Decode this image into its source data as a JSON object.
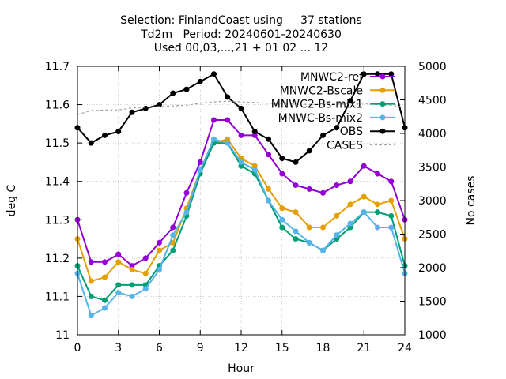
{
  "chart_data": {
    "type": "line",
    "title_lines": [
      "Selection: FinlandCoast using     37 stations",
      "Td2m   Period: 20240601-20240630",
      "Used 00,03,...,21 + 01 02 ... 12"
    ],
    "xlabel": "Hour",
    "ylabel": "deg C",
    "y2label": "No cases",
    "xlim": [
      0,
      24
    ],
    "ylim": [
      11.0,
      11.7
    ],
    "y2lim": [
      1000,
      5000
    ],
    "xticks": [
      "0",
      "3",
      "6",
      "9",
      "12",
      "15",
      "18",
      "21",
      "24"
    ],
    "yticks": [
      "11",
      "11.1",
      "11.2",
      "11.3",
      "11.4",
      "11.5",
      "11.6",
      "11.7"
    ],
    "y2ticks": [
      "1000",
      "1500",
      "2000",
      "2500",
      "3000",
      "3500",
      "4000",
      "4500",
      "5000"
    ],
    "legend_position": "top-right",
    "grid": true,
    "x": [
      0,
      1,
      2,
      3,
      4,
      5,
      6,
      7,
      8,
      9,
      10,
      11,
      12,
      13,
      14,
      15,
      16,
      17,
      18,
      19,
      20,
      21,
      22,
      23,
      24
    ],
    "series": [
      {
        "name": "MNWC2-ref",
        "color": "#9400d3",
        "axis": "y",
        "values": [
          11.3,
          11.19,
          11.19,
          11.21,
          11.18,
          11.2,
          11.24,
          11.28,
          11.37,
          11.45,
          11.56,
          11.56,
          11.52,
          11.52,
          11.47,
          11.42,
          11.39,
          11.38,
          11.37,
          11.39,
          11.4,
          11.44,
          11.42,
          11.4,
          11.3
        ]
      },
      {
        "name": "MNWC2-Bscale",
        "color": "#e69f00",
        "axis": "y",
        "values": [
          11.25,
          11.14,
          11.15,
          11.19,
          11.17,
          11.16,
          11.22,
          11.24,
          11.33,
          11.43,
          11.5,
          11.51,
          11.46,
          11.44,
          11.38,
          11.33,
          11.32,
          11.28,
          11.28,
          11.31,
          11.34,
          11.36,
          11.34,
          11.35,
          11.25
        ]
      },
      {
        "name": "MNWC2-Bs-mix1",
        "color": "#009e73",
        "axis": "y",
        "values": [
          11.18,
          11.1,
          11.09,
          11.13,
          11.13,
          11.13,
          11.18,
          11.22,
          11.31,
          11.42,
          11.5,
          11.5,
          11.44,
          11.42,
          11.35,
          11.28,
          11.25,
          11.24,
          11.22,
          11.25,
          11.28,
          11.32,
          11.32,
          11.31,
          11.18
        ]
      },
      {
        "name": "MNWC-Bs-mix2",
        "color": "#56b4e9",
        "axis": "y",
        "values": [
          11.16,
          11.05,
          11.07,
          11.11,
          11.1,
          11.12,
          11.17,
          11.26,
          11.32,
          11.43,
          11.51,
          11.5,
          11.45,
          11.43,
          11.35,
          11.3,
          11.27,
          11.24,
          11.22,
          11.26,
          11.29,
          11.32,
          11.28,
          11.28,
          11.16
        ]
      },
      {
        "name": "OBS",
        "color": "#000000",
        "axis": "y",
        "values": [
          11.54,
          11.5,
          11.52,
          11.53,
          11.58,
          11.59,
          11.6,
          11.63,
          11.64,
          11.66,
          11.68,
          11.62,
          11.59,
          11.53,
          11.51,
          11.46,
          11.45,
          11.48,
          11.52,
          11.54,
          11.61,
          11.68,
          11.68,
          11.68,
          11.54
        ]
      },
      {
        "name": "CASES",
        "color": "#a0a0a0",
        "axis": "y2",
        "dashed": true,
        "values": [
          4280,
          4340,
          4350,
          4350,
          4380,
          4390,
          4400,
          4410,
          4420,
          4450,
          4470,
          4480,
          4470,
          4460,
          4450,
          4440,
          4440,
          4430,
          4430,
          4440,
          4440,
          4450,
          4430,
          4420,
          4390
        ]
      }
    ]
  }
}
